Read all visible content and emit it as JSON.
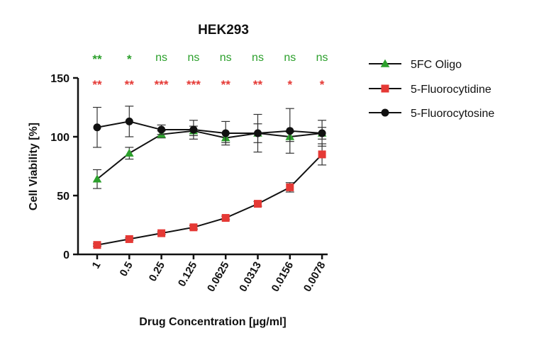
{
  "chart_data": {
    "type": "line",
    "title": "HEK293",
    "xlabel": "Drug Concentration [µg/ml]",
    "ylabel": "Cell Viability [%]",
    "categories": [
      "1",
      "0.5",
      "0.25",
      "0.125",
      "0.0625",
      "0.0313",
      "0.0156",
      "0.0078"
    ],
    "ylim": [
      0,
      150
    ],
    "yticks": [
      "0",
      "50",
      "100",
      "150"
    ],
    "grid": false,
    "legend_position": "right",
    "significance_rows": [
      {
        "color": "#2ca02c",
        "labels": [
          "**",
          "*",
          "ns",
          "ns",
          "ns",
          "ns",
          "ns",
          "ns"
        ]
      },
      {
        "color": "#e53935",
        "labels": [
          "**",
          "**",
          "***",
          "***",
          "**",
          "**",
          "*",
          "*"
        ]
      }
    ],
    "series": [
      {
        "name": "5FC Oligo",
        "color": "#2ca02c",
        "marker": "triangle",
        "values": [
          64,
          86,
          102,
          105,
          99,
          103,
          100,
          103
        ],
        "errors": [
          8,
          5,
          3,
          4,
          4,
          8,
          4,
          5
        ]
      },
      {
        "name": "5-Fluorocytidine",
        "color": "#e53935",
        "marker": "square",
        "values": [
          8,
          13,
          18,
          23,
          31,
          43,
          57,
          85
        ],
        "errors": [
          1,
          1,
          1,
          1.5,
          1.5,
          2,
          4,
          9
        ]
      },
      {
        "name": "5-Fluorocytosine",
        "color": "#111111",
        "marker": "circle",
        "values": [
          108,
          113,
          106,
          106,
          103,
          103,
          105,
          103
        ],
        "errors": [
          17,
          13,
          4,
          8,
          10,
          16,
          19,
          11
        ]
      }
    ]
  }
}
